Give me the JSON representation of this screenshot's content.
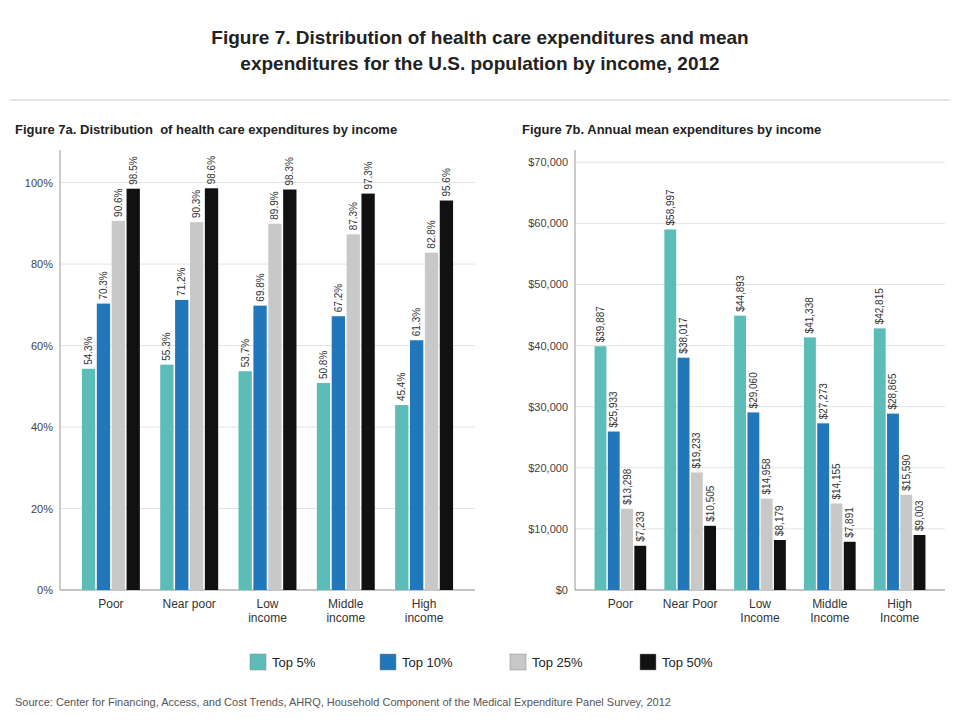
{
  "title": "Figure 7. Distribution of health care expenditures and mean\nexpenditures for the U.S. population by income, 2012",
  "source": "Source: Center for Financing, Access, and Cost Trends, AHRQ, Household Component of the Medical Expenditure Panel Survey, 2012",
  "chart_data": [
    {
      "type": "bar",
      "title": "Figure 7a. Distribution  of health care expenditures by income",
      "categories": [
        "Poor",
        "Near poor",
        "Low\nincome",
        "Middle\nincome",
        "High\nincome"
      ],
      "series": [
        {
          "name": "Top 5%",
          "color": "#5bbcb8",
          "values": [
            54.3,
            55.3,
            53.7,
            50.8,
            45.4
          ],
          "value_labels": [
            "54.3%",
            "55.3%",
            "53.7%",
            "50.8%",
            "45.4%"
          ]
        },
        {
          "name": "Top 10%",
          "color": "#2277bb",
          "values": [
            70.3,
            71.2,
            69.8,
            67.2,
            61.3
          ],
          "value_labels": [
            "70.3%",
            "71.2%",
            "69.8%",
            "67.2%",
            "61.3%"
          ]
        },
        {
          "name": "Top 25%",
          "color": "#c8c8c8",
          "values": [
            90.6,
            90.3,
            89.9,
            87.3,
            82.8
          ],
          "value_labels": [
            "90.6%",
            "90.3%",
            "89.9%",
            "87.3%",
            "82.8%"
          ]
        },
        {
          "name": "Top 50%",
          "color": "#111111",
          "values": [
            98.5,
            98.6,
            98.3,
            97.3,
            95.6
          ],
          "value_labels": [
            "98.5%",
            "98.6%",
            "98.3%",
            "97.3%",
            "95.6%"
          ]
        }
      ],
      "ylim": [
        0,
        108
      ],
      "yticks": [
        {
          "value": 0,
          "label": "0%"
        },
        {
          "value": 20,
          "label": "20%"
        },
        {
          "value": 40,
          "label": "40%"
        },
        {
          "value": 60,
          "label": "60%"
        },
        {
          "value": 80,
          "label": "80%"
        },
        {
          "value": 100,
          "label": "100%"
        }
      ],
      "grid": true,
      "data_labels": true,
      "legend": "bottom"
    },
    {
      "type": "bar",
      "title": "Figure 7b. Annual mean expenditures by income",
      "categories": [
        "Poor",
        "Near Poor",
        "Low\nIncome",
        "Middle\nIncome",
        "High\nIncome"
      ],
      "series": [
        {
          "name": "Top 5%",
          "color": "#5bbcb8",
          "values": [
            39887,
            58997,
            44893,
            41338,
            42815
          ],
          "value_labels": [
            "$39,887",
            "$58,997",
            "$44,893",
            "$41,338",
            "$42,815"
          ]
        },
        {
          "name": "Top 10%",
          "color": "#2277bb",
          "values": [
            25933,
            38017,
            29060,
            27273,
            28865
          ],
          "value_labels": [
            "$25,933",
            "$38,017",
            "$29,060",
            "$27,273",
            "$28,865"
          ]
        },
        {
          "name": "Top 25%",
          "color": "#c8c8c8",
          "values": [
            13298,
            19233,
            14958,
            14155,
            15590
          ],
          "value_labels": [
            "$13,298",
            "$19,233",
            "$14,958",
            "$14,155",
            "$15,590"
          ]
        },
        {
          "name": "Top 50%",
          "color": "#111111",
          "values": [
            7233,
            10505,
            8179,
            7891,
            9003
          ],
          "value_labels": [
            "$7,233",
            "$10,505",
            "$8,179",
            "$7,891",
            "$9,003"
          ]
        }
      ],
      "ylim": [
        0,
        72000
      ],
      "yticks": [
        {
          "value": 0,
          "label": "$0"
        },
        {
          "value": 10000,
          "label": "$10,000"
        },
        {
          "value": 20000,
          "label": "$20,000"
        },
        {
          "value": 30000,
          "label": "$30,000"
        },
        {
          "value": 40000,
          "label": "$40,000"
        },
        {
          "value": 50000,
          "label": "$50,000"
        },
        {
          "value": 60000,
          "label": "$60,000"
        },
        {
          "value": 70000,
          "label": "$70,000"
        }
      ],
      "grid": true,
      "data_labels": true
    }
  ]
}
